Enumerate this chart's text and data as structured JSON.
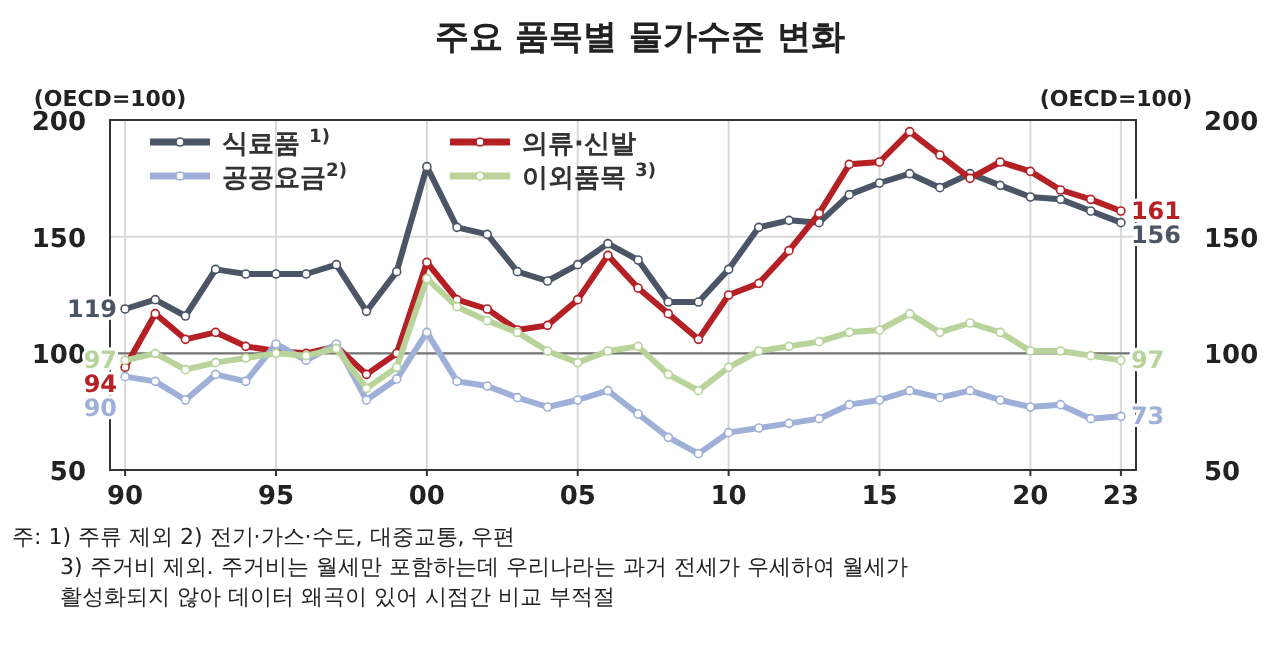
{
  "chart_data": {
    "type": "line",
    "title": "주요 품목별 물가수준 변화",
    "ylabel": "(OECD=100)",
    "y2label": "(OECD=100)",
    "x": [
      1990,
      1991,
      1992,
      1993,
      1994,
      1995,
      1996,
      1997,
      1998,
      1999,
      2000,
      2001,
      2002,
      2003,
      2004,
      2005,
      2006,
      2007,
      2008,
      2009,
      2010,
      2011,
      2012,
      2013,
      2014,
      2015,
      2016,
      2017,
      2018,
      2019,
      2020,
      2021,
      2022,
      2023
    ],
    "series": [
      {
        "name": "식료품 $^{1)}$",
        "color": "#4a5566",
        "values": [
          119,
          123,
          116,
          136,
          134,
          134,
          134,
          138,
          118,
          135,
          180,
          154,
          151,
          135,
          131,
          138,
          147,
          140,
          122,
          122,
          136,
          154,
          157,
          156,
          168,
          173,
          177,
          171,
          177,
          172,
          167,
          166,
          161,
          156
        ],
        "value_labels": [
          "119",
          null,
          null,
          null,
          null,
          null,
          null,
          null,
          null,
          null,
          null,
          null,
          null,
          null,
          null,
          null,
          null,
          null,
          null,
          null,
          null,
          null,
          null,
          null,
          null,
          null,
          null,
          null,
          null,
          null,
          null,
          null,
          null,
          "156"
        ]
      },
      {
        "name": "의류·신발",
        "color": "#b52025",
        "values": [
          94,
          117,
          106,
          109,
          103,
          101,
          100,
          103,
          91,
          100,
          139,
          123,
          119,
          110,
          112,
          123,
          142,
          128,
          117,
          106,
          125,
          130,
          144,
          160,
          181,
          182,
          195,
          185,
          175,
          182,
          178,
          170,
          166,
          161
        ],
        "value_labels": [
          "94",
          null,
          null,
          null,
          null,
          null,
          null,
          null,
          null,
          null,
          null,
          null,
          null,
          null,
          null,
          null,
          null,
          null,
          null,
          null,
          null,
          null,
          null,
          null,
          null,
          null,
          null,
          null,
          null,
          null,
          null,
          null,
          null,
          "161"
        ]
      },
      {
        "name": "공공요금$^{2)}$",
        "color": "#9fb0d8",
        "values": [
          90,
          88,
          80,
          91,
          88,
          104,
          97,
          104,
          80,
          89,
          109,
          88,
          86,
          81,
          77,
          80,
          84,
          74,
          64,
          57,
          66,
          68,
          70,
          72,
          78,
          80,
          84,
          81,
          84,
          80,
          77,
          78,
          72,
          73
        ],
        "value_labels": [
          "90",
          null,
          null,
          null,
          null,
          null,
          null,
          null,
          null,
          null,
          null,
          null,
          null,
          null,
          null,
          null,
          null,
          null,
          null,
          null,
          null,
          null,
          null,
          null,
          null,
          null,
          null,
          null,
          null,
          null,
          null,
          null,
          null,
          "73"
        ]
      },
      {
        "name": "이외품목 $^{3)}$",
        "color": "#b8d49a",
        "values": [
          97,
          100,
          93,
          96,
          98,
          100,
          99,
          102,
          85,
          94,
          132,
          120,
          114,
          109,
          101,
          96,
          101,
          103,
          91,
          84,
          94,
          101,
          103,
          105,
          109,
          110,
          117,
          109,
          113,
          109,
          101,
          101,
          99,
          97
        ],
        "value_labels": [
          "97",
          null,
          null,
          null,
          null,
          null,
          null,
          null,
          null,
          null,
          null,
          null,
          null,
          null,
          null,
          null,
          null,
          null,
          null,
          null,
          null,
          null,
          null,
          null,
          null,
          null,
          null,
          null,
          null,
          null,
          null,
          null,
          null,
          "97"
        ]
      }
    ],
    "xlim": [
      1989.5,
      2023.5
    ],
    "xticks": [
      {
        "value": 1990,
        "label": "90"
      },
      {
        "value": 1995,
        "label": "95"
      },
      {
        "value": 2000,
        "label": "00"
      },
      {
        "value": 2005,
        "label": "05"
      },
      {
        "value": 2010,
        "label": "10"
      },
      {
        "value": 2015,
        "label": "15"
      },
      {
        "value": 2020,
        "label": "20"
      },
      {
        "value": 2023,
        "label": "23"
      }
    ],
    "ylim": [
      50,
      200
    ],
    "yticks": [
      50,
      100,
      150,
      200
    ],
    "y2lim": [
      50,
      200
    ],
    "y2ticks": [
      50,
      100,
      150,
      200
    ],
    "ref_lines": [
      {
        "axis": "y",
        "value": 100,
        "color": "#777777"
      }
    ],
    "grid": true,
    "legend": "top left",
    "marker": "circle",
    "line_style": "solid",
    "annotations": [
      "주: 1) 주류 제외   2) 전기·가스·수도, 대중교통, 우편",
      "3) 주거비 제외. 주거비는 월세만 포함하는데 우리나라는 과거 전세가 우세하여 월세가",
      "활성화되지 않아 데이터 왜곡이 있어 시점간 비교 부적절"
    ]
  }
}
